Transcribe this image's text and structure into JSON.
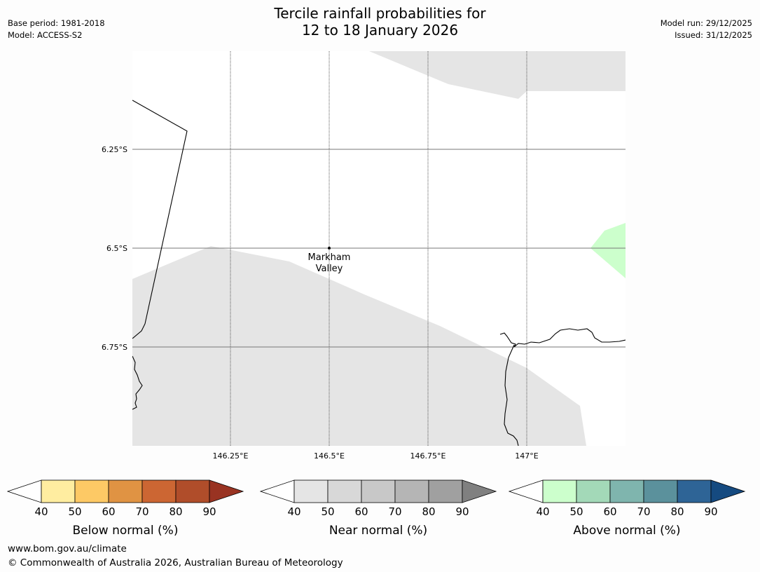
{
  "title": {
    "line1": "Tercile rainfall probabilities for",
    "line2": "12 to 18 January 2026"
  },
  "meta": {
    "base_period": "Base period: 1981-2018",
    "model": "Model: ACCESS-S2",
    "model_run": "Model run: 29/12/2025",
    "issued": "Issued: 31/12/2025"
  },
  "map": {
    "lat_labels": [
      "6.25°S",
      "6.5°S",
      "6.75°S"
    ],
    "lon_labels": [
      "146.25°E",
      "146.5°E",
      "146.75°E",
      "147°E"
    ],
    "place": {
      "name_line1": "Markham",
      "name_line2": "Valley"
    },
    "colors": {
      "near_normal_fill": "#e5e5e5",
      "above_normal_fill": "#ccffcc",
      "coastline": "#000000"
    }
  },
  "colorbars": [
    {
      "name": "below",
      "label": "Below normal (%)",
      "ticks": [
        "40",
        "50",
        "60",
        "70",
        "80",
        "90"
      ],
      "colors": [
        "#ffffff",
        "#ffeda0",
        "#fdc965",
        "#e09343",
        "#cc6633",
        "#b04d2a",
        "#993322"
      ]
    },
    {
      "name": "near",
      "label": "Near normal (%)",
      "ticks": [
        "40",
        "50",
        "60",
        "70",
        "80",
        "90"
      ],
      "colors": [
        "#ffffff",
        "#e5e5e5",
        "#d8d8d8",
        "#c8c8c8",
        "#b5b5b5",
        "#a0a0a0",
        "#808080"
      ]
    },
    {
      "name": "above",
      "label": "Above normal (%)",
      "ticks": [
        "40",
        "50",
        "60",
        "70",
        "80",
        "90"
      ],
      "colors": [
        "#ffffff",
        "#ccffcc",
        "#a3d9b8",
        "#7fb5ae",
        "#5b919c",
        "#2e6496",
        "#154a80"
      ]
    }
  ],
  "footer": {
    "url": "www.bom.gov.au/climate",
    "copyright": "© Commonwealth of Australia 2026, Australian Bureau of Meteorology"
  }
}
